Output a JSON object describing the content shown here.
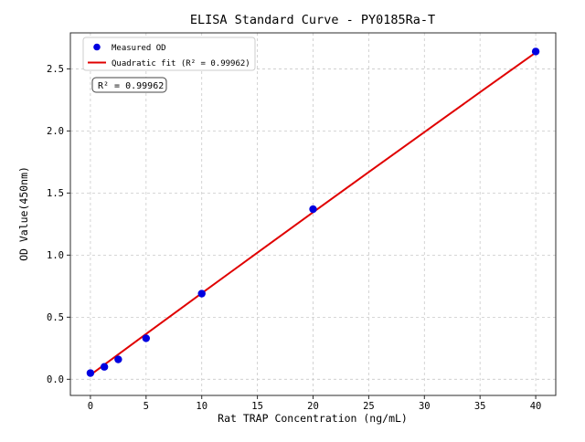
{
  "figure": {
    "background": "#ffffff",
    "text_color": "#000000",
    "spine_color": "#2b2b2b"
  },
  "chart_data": {
    "type": "scatter",
    "title": "ELISA Standard Curve - PY0185Ra-T",
    "xlabel": "Rat TRAP Concentration (ng/mL)",
    "ylabel": "OD Value(450nm)",
    "xlim": [
      -1.8,
      41.8
    ],
    "ylim": [
      -0.13,
      2.79
    ],
    "x_ticks": [
      "0",
      "5",
      "10",
      "15",
      "20",
      "25",
      "30",
      "35",
      "40"
    ],
    "y_ticks": [
      "0.0",
      "0.5",
      "1.0",
      "1.5",
      "2.0",
      "2.5"
    ],
    "grid": true,
    "grid_style": "dashed",
    "grid_color": "#c9c9c9",
    "legend_position": "upper-left",
    "series": [
      {
        "name": "Measured OD",
        "type": "scatter",
        "color": "#0000e0",
        "x": [
          0,
          1.25,
          2.5,
          5,
          10,
          20,
          40
        ],
        "y": [
          0.05,
          0.1,
          0.16,
          0.33,
          0.69,
          1.37,
          2.64
        ]
      },
      {
        "name": "Quadratic fit (R² = 0.99962)",
        "type": "line",
        "color": "#e00000",
        "x": [
          0,
          5,
          10,
          15,
          20,
          25,
          30,
          35,
          40
        ],
        "y": [
          0.035,
          0.365,
          0.693,
          1.02,
          1.345,
          1.669,
          1.991,
          2.312,
          2.631
        ]
      }
    ],
    "annotation": {
      "text": "R² = 0.99962"
    }
  }
}
